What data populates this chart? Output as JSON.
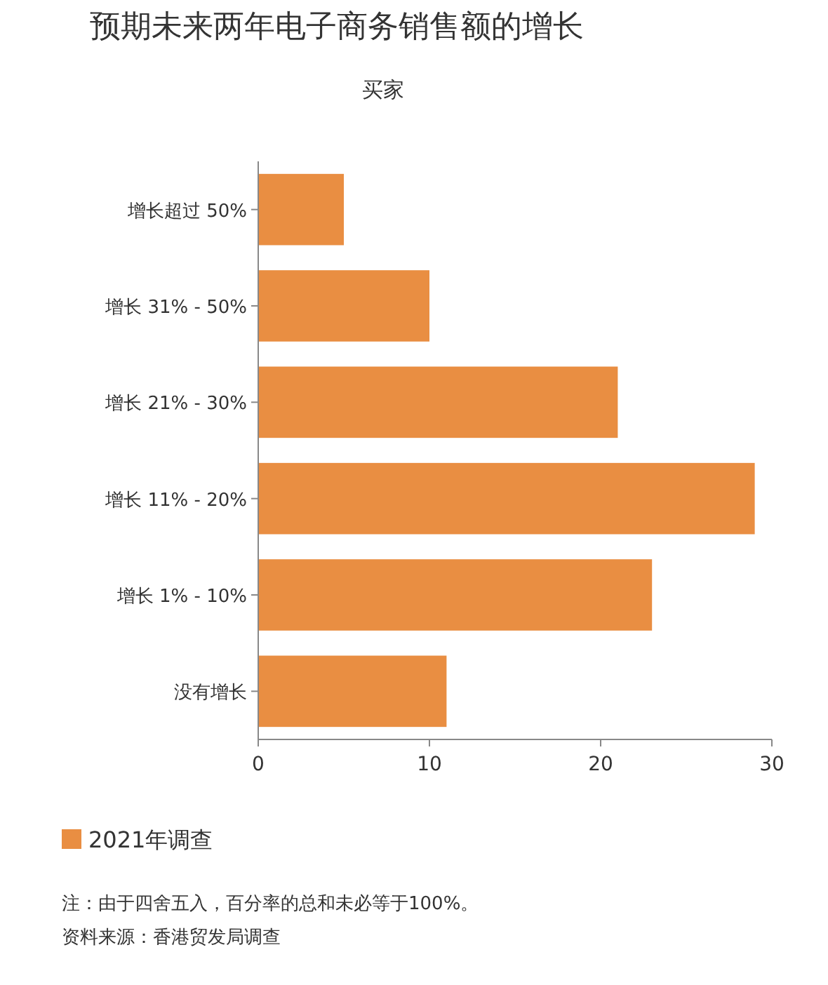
{
  "chart_data": {
    "type": "bar",
    "orientation": "horizontal",
    "title": "预期未来两年电子商务销售额的增长",
    "subtitle": "买家",
    "categories": [
      "增长超过 50%",
      "增长 31% - 50%",
      "增长 21% - 30%",
      "增长 11% - 20%",
      "增长 1% - 10%",
      "没有增长"
    ],
    "series": [
      {
        "name": "2021年调查",
        "color": "#e98e42",
        "values": [
          5,
          10,
          21,
          29,
          23,
          11
        ]
      }
    ],
    "xlim": [
      0,
      30
    ],
    "xticks": [
      0,
      10,
      20,
      30
    ],
    "legend": "bottom",
    "annotations": [
      "注：由于四舍五入，百分率的总和未必等于100%。",
      "资料来源：香港贸发局调查"
    ]
  }
}
